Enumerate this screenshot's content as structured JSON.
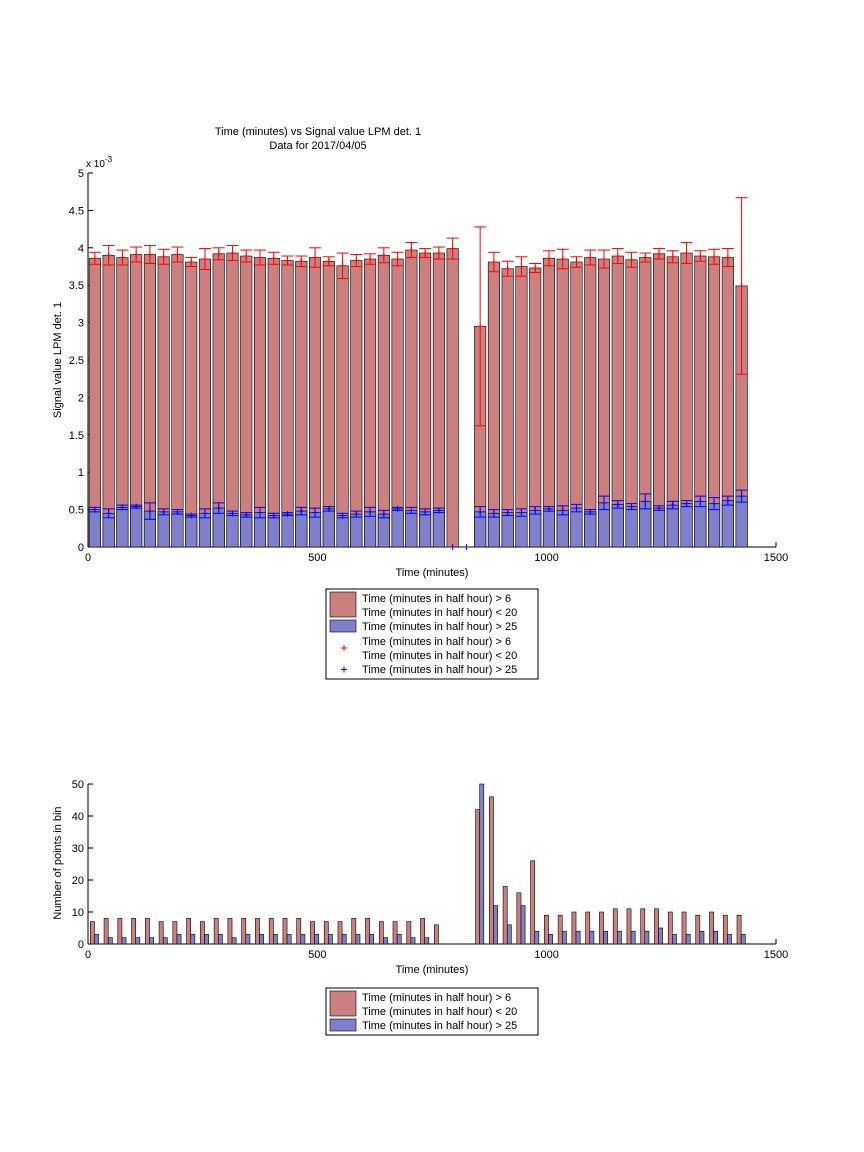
{
  "figure": {
    "title_line1": "Time (minutes) vs Signal value LPM det. 1",
    "title_line2": "Data for 2017/04/05"
  },
  "colors": {
    "red_fill": "#cc7f7f",
    "red_line": "#ff0000",
    "blue_fill": "#7f7fcc",
    "blue_line": "#0000ff",
    "bar_edge": "#000000"
  },
  "legend_top": {
    "entries": [
      {
        "line1": "Time (minutes in half hour) > 6",
        "line2": "Time (minutes in half hour) < 20",
        "swatch": "red_fill"
      },
      {
        "line1": "Time (minutes in half hour) > 25",
        "swatch": "blue_fill"
      },
      {
        "line1": "Time (minutes in half hour) > 6",
        "line2": "Time (minutes in half hour) < 20",
        "marker": "+",
        "marker_color": "red_line"
      },
      {
        "line1": "Time (minutes in half hour) > 25",
        "marker": "+",
        "marker_color": "blue_line"
      }
    ]
  },
  "legend_bottom": {
    "entries": [
      {
        "line1": "Time (minutes in half hour) > 6",
        "line2": "Time (minutes in half hour) < 20",
        "swatch": "red_fill"
      },
      {
        "line1": "Time (minutes in half hour) > 25",
        "swatch": "blue_fill"
      }
    ]
  },
  "chart_data": [
    {
      "type": "bar",
      "title": "Time (minutes) vs Signal value LPM det. 1",
      "subtitle": "Data for 2017/04/05",
      "xlabel": "Time (minutes)",
      "ylabel": "Signal value LPM det. 1",
      "y_exponent_label": "x 10^-3",
      "xlim": [
        0,
        1500
      ],
      "ylim": [
        0,
        5
      ],
      "xticks": [
        0,
        500,
        1000,
        1500
      ],
      "yticks": [
        0,
        0.5,
        1,
        1.5,
        2,
        2.5,
        3,
        3.5,
        4,
        4.5,
        5
      ],
      "ytick_labels": [
        "0",
        "0.5",
        "1",
        "1.5",
        "2",
        "2.5",
        "3",
        "3.5",
        "4",
        "4.5",
        "5"
      ],
      "grid": false,
      "legend_position": "below",
      "x": [
        15,
        45,
        75,
        105,
        135,
        165,
        195,
        225,
        255,
        285,
        315,
        345,
        375,
        405,
        435,
        465,
        495,
        525,
        555,
        585,
        615,
        645,
        675,
        705,
        735,
        765,
        795,
        825,
        855,
        885,
        915,
        945,
        975,
        1005,
        1035,
        1065,
        1095,
        1125,
        1155,
        1185,
        1215,
        1245,
        1275,
        1305,
        1335,
        1365,
        1395,
        1425
      ],
      "series": [
        {
          "name": "Time (minutes in half hour) > 6 Time (minutes in half hour) < 20",
          "values": [
            3.86,
            3.9,
            3.87,
            3.91,
            3.91,
            3.88,
            3.91,
            3.81,
            3.85,
            3.92,
            3.93,
            3.89,
            3.87,
            3.86,
            3.83,
            3.82,
            3.87,
            3.82,
            3.76,
            3.83,
            3.85,
            3.9,
            3.85,
            3.97,
            3.93,
            3.93,
            3.99,
            null,
            2.95,
            3.81,
            3.72,
            3.75,
            3.73,
            3.86,
            3.85,
            3.81,
            3.87,
            3.85,
            3.89,
            3.84,
            3.87,
            3.92,
            3.88,
            3.93,
            3.89,
            3.88,
            3.87,
            3.49
          ],
          "errors": [
            0.08,
            0.13,
            0.1,
            0.1,
            0.12,
            0.1,
            0.1,
            0.06,
            0.14,
            0.08,
            0.1,
            0.08,
            0.1,
            0.08,
            0.06,
            0.07,
            0.13,
            0.06,
            0.17,
            0.08,
            0.07,
            0.1,
            0.09,
            0.1,
            0.06,
            0.08,
            0.14,
            null,
            1.33,
            0.13,
            0.1,
            0.13,
            0.06,
            0.1,
            0.13,
            0.07,
            0.1,
            0.12,
            0.1,
            0.1,
            0.06,
            0.07,
            0.08,
            0.14,
            0.07,
            0.1,
            0.12,
            1.18
          ]
        },
        {
          "name": "Time (minutes in half hour) > 25",
          "values": [
            0.5,
            0.45,
            0.53,
            0.54,
            0.48,
            0.47,
            0.47,
            0.42,
            0.45,
            0.52,
            0.45,
            0.43,
            0.46,
            0.42,
            0.44,
            0.48,
            0.46,
            0.51,
            0.42,
            0.44,
            0.47,
            0.44,
            0.51,
            0.49,
            0.47,
            0.49,
            0.0,
            0.0,
            0.47,
            0.45,
            0.46,
            0.46,
            0.49,
            0.51,
            0.49,
            0.52,
            0.47,
            0.59,
            0.57,
            0.54,
            0.61,
            0.52,
            0.56,
            0.58,
            0.61,
            0.58,
            0.62,
            0.68
          ],
          "errors": [
            0.03,
            0.06,
            0.03,
            0.02,
            0.11,
            0.04,
            0.03,
            0.02,
            0.06,
            0.07,
            0.03,
            0.03,
            0.07,
            0.03,
            0.02,
            0.05,
            0.06,
            0.03,
            0.03,
            0.04,
            0.06,
            0.05,
            0.02,
            0.04,
            0.04,
            0.03,
            0.01,
            0.01,
            0.07,
            0.05,
            0.04,
            0.05,
            0.05,
            0.03,
            0.06,
            0.05,
            0.03,
            0.09,
            0.05,
            0.04,
            0.1,
            0.03,
            0.05,
            0.04,
            0.07,
            0.08,
            0.06,
            0.08
          ]
        }
      ]
    },
    {
      "type": "bar",
      "xlabel": "Time (minutes)",
      "ylabel": "Number of points in bin",
      "xlim": [
        0,
        1500
      ],
      "ylim": [
        0,
        50
      ],
      "xticks": [
        0,
        500,
        1000,
        1500
      ],
      "yticks": [
        0,
        10,
        20,
        30,
        40,
        50
      ],
      "grid": false,
      "legend_position": "below",
      "x": [
        15,
        45,
        75,
        105,
        135,
        165,
        195,
        225,
        255,
        285,
        315,
        345,
        375,
        405,
        435,
        465,
        495,
        525,
        555,
        585,
        615,
        645,
        675,
        705,
        735,
        765,
        795,
        825,
        855,
        885,
        915,
        945,
        975,
        1005,
        1035,
        1065,
        1095,
        1125,
        1155,
        1185,
        1215,
        1245,
        1275,
        1305,
        1335,
        1365,
        1395,
        1425
      ],
      "series": [
        {
          "name": "Time (minutes in half hour) > 6 Time (minutes in half hour) < 20",
          "values": [
            7,
            8,
            8,
            8,
            8,
            7,
            7,
            8,
            7,
            8,
            8,
            8,
            8,
            8,
            8,
            8,
            7,
            7,
            7,
            8,
            8,
            7,
            7,
            7,
            8,
            6,
            0,
            0,
            42,
            46,
            18,
            16,
            26,
            9,
            9,
            10,
            10,
            10,
            11,
            11,
            11,
            11,
            10,
            10,
            9,
            10,
            9,
            9
          ]
        },
        {
          "name": "Time (minutes in half hour) > 25",
          "values": [
            3,
            2,
            2,
            2,
            2,
            2,
            3,
            3,
            3,
            3,
            2,
            3,
            3,
            3,
            3,
            3,
            3,
            3,
            3,
            3,
            3,
            2,
            3,
            2,
            2,
            0,
            0,
            0,
            50,
            12,
            6,
            12,
            4,
            3,
            4,
            4,
            4,
            4,
            4,
            4,
            4,
            5,
            3,
            3,
            4,
            4,
            3,
            3
          ]
        }
      ]
    }
  ]
}
